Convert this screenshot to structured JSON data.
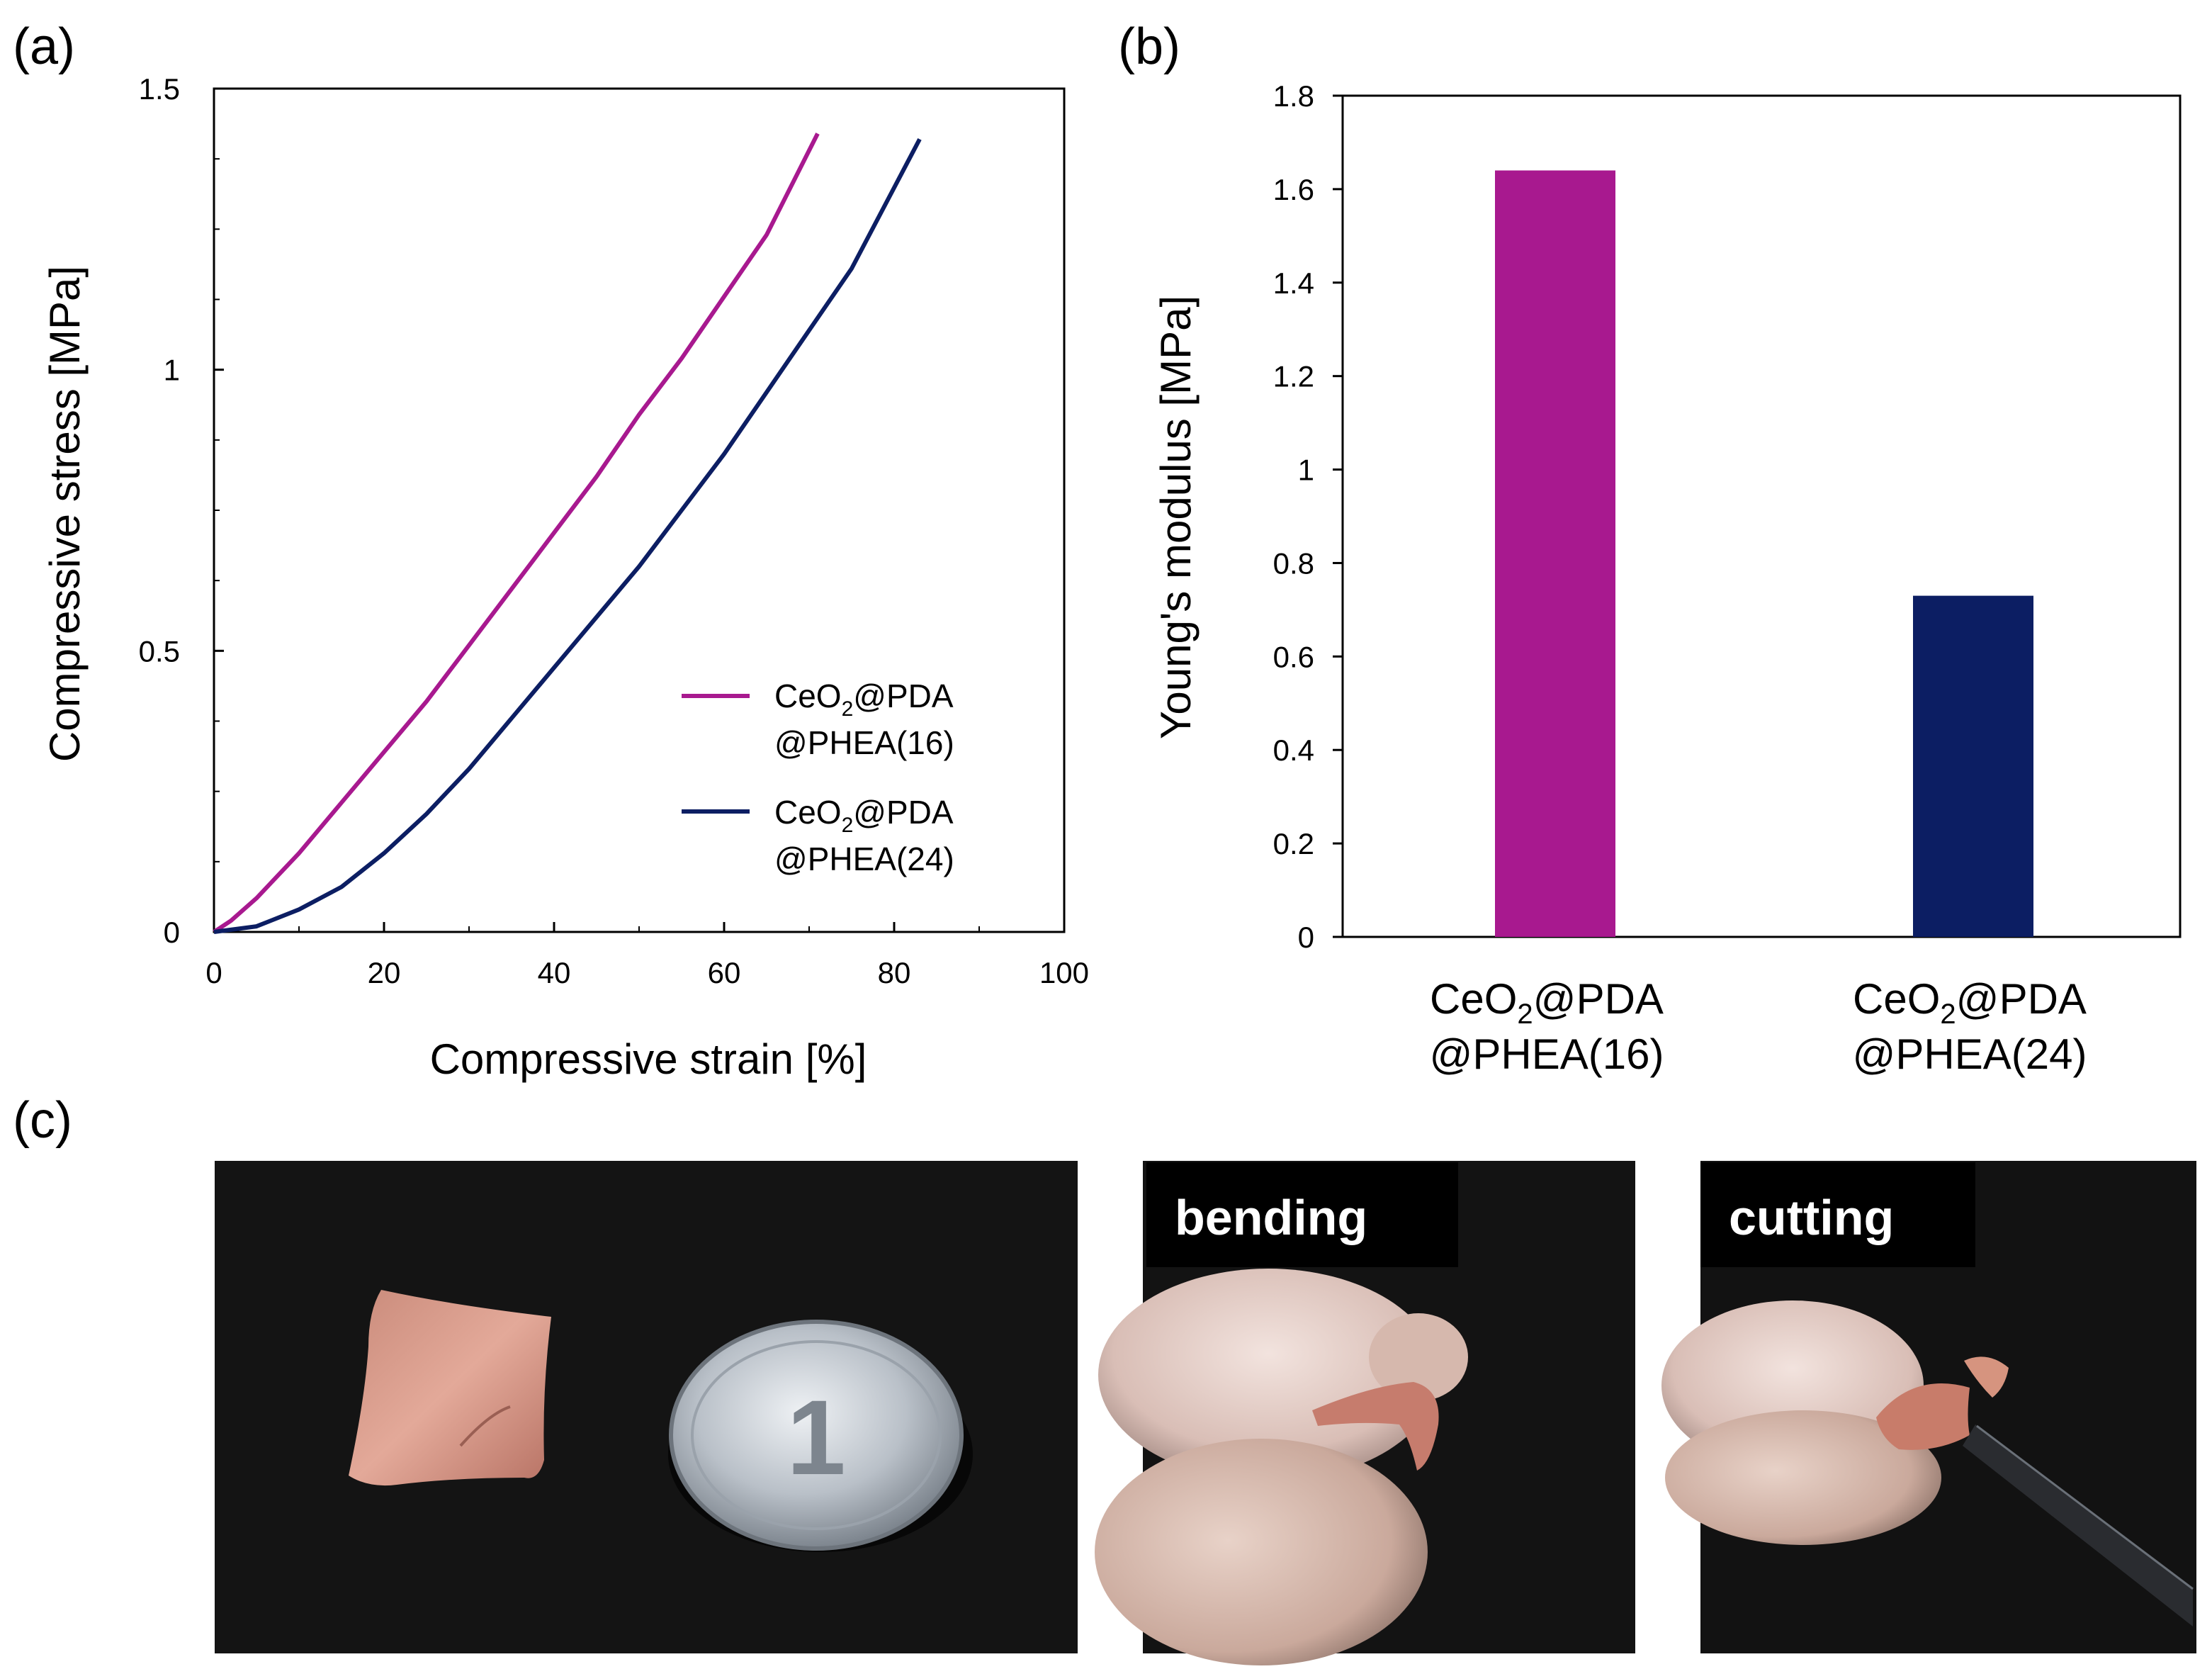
{
  "panel_labels": {
    "a": "(a)",
    "b": "(b)",
    "c": "(c)"
  },
  "chart_data": [
    {
      "panel": "(a)",
      "type": "line",
      "xlabel": "Compressive strain [%]",
      "ylabel": "Compressive stress [MPa]",
      "xlim": [
        0,
        100
      ],
      "ylim": [
        0,
        1.5
      ],
      "xticks": [
        0,
        20,
        40,
        60,
        80,
        100
      ],
      "xtick_labels": [
        "0",
        "20",
        "40",
        "60",
        "80",
        "100"
      ],
      "yticks": [
        0,
        0.5,
        1,
        1.5
      ],
      "ytick_labels": [
        "0",
        "0.5",
        "1",
        "1.5"
      ],
      "legend_position": "center-right",
      "series": [
        {
          "name": "CeO2@PDA @PHEA(16)",
          "legend_line1_pre": "CeO",
          "legend_line1_sub": "2",
          "legend_line1_post": "@PDA",
          "legend_line2": "@PHEA(16)",
          "color": "#a8198f",
          "x": [
            0,
            2,
            5,
            10,
            15,
            20,
            25,
            30,
            35,
            40,
            45,
            50,
            55,
            60,
            65,
            71
          ],
          "y": [
            0,
            0.02,
            0.06,
            0.14,
            0.23,
            0.32,
            0.41,
            0.51,
            0.61,
            0.71,
            0.81,
            0.92,
            1.02,
            1.13,
            1.24,
            1.42
          ]
        },
        {
          "name": "CeO2@PDA @PHEA(24)",
          "legend_line1_pre": "CeO",
          "legend_line1_sub": "2",
          "legend_line1_post": "@PDA",
          "legend_line2": "@PHEA(24)",
          "color": "#0c1e63",
          "x": [
            0,
            5,
            10,
            15,
            20,
            25,
            30,
            35,
            40,
            45,
            50,
            55,
            60,
            65,
            70,
            75,
            83
          ],
          "y": [
            0,
            0.01,
            0.04,
            0.08,
            0.14,
            0.21,
            0.29,
            0.38,
            0.47,
            0.56,
            0.65,
            0.75,
            0.85,
            0.96,
            1.07,
            1.18,
            1.41
          ]
        }
      ]
    },
    {
      "panel": "(b)",
      "type": "bar",
      "ylabel": "Young's modulus [MPa]",
      "ylim": [
        0,
        1.8
      ],
      "yticks": [
        0,
        0.2,
        0.4,
        0.6,
        0.8,
        1,
        1.2,
        1.4,
        1.6,
        1.8
      ],
      "ytick_labels": [
        "0",
        "0.2",
        "0.4",
        "0.6",
        "0.8",
        "1",
        "1.2",
        "1.4",
        "1.6",
        "1.8"
      ],
      "categories": [
        {
          "pre": "CeO",
          "sub": "2",
          "post": "@PDA",
          "line2": "@PHEA(16)"
        },
        {
          "pre": "CeO",
          "sub": "2",
          "post": "@PDA",
          "line2": "@PHEA(24)"
        }
      ],
      "values": [
        1.64,
        0.73
      ],
      "colors": [
        "#a8198f",
        "#0c1e63"
      ]
    }
  ],
  "photos": {
    "bending_label": "bending",
    "cutting_label": "cutting",
    "coin_character": "1"
  }
}
